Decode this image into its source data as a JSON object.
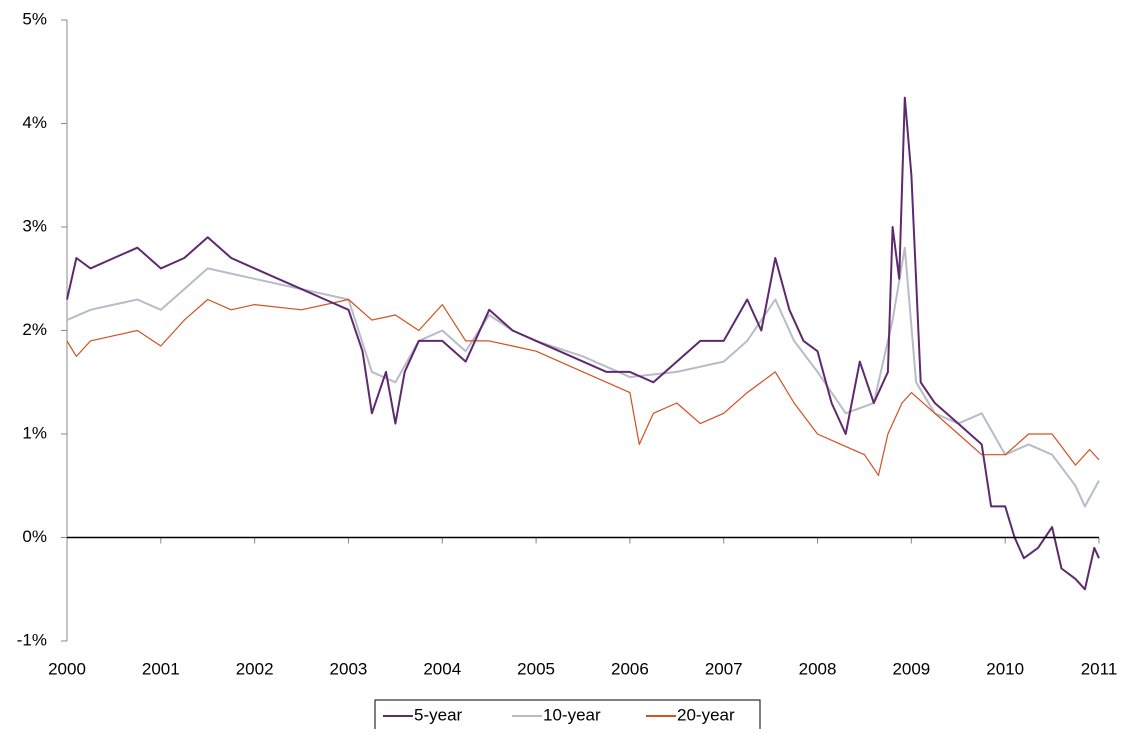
{
  "chart_data": {
    "type": "line",
    "xlim": [
      2000,
      2011
    ],
    "xticks": [
      2000,
      2001,
      2002,
      2003,
      2004,
      2005,
      2006,
      2007,
      2008,
      2009,
      2010,
      2011
    ],
    "ylim": [
      -1,
      5
    ],
    "yticks": [
      {
        "value": -1,
        "label": "-1%"
      },
      {
        "value": 0,
        "label": "0%"
      },
      {
        "value": 1,
        "label": "1%"
      },
      {
        "value": 2,
        "label": "2%"
      },
      {
        "value": 3,
        "label": "3%"
      },
      {
        "value": 4,
        "label": "4%"
      },
      {
        "value": 5,
        "label": "5%"
      }
    ],
    "legend": "bottom",
    "series": [
      {
        "name": "5-year",
        "color": "#5e2a6e",
        "x": [
          2000.0,
          2000.1,
          2000.25,
          2000.5,
          2000.75,
          2001.0,
          2001.25,
          2001.5,
          2001.75,
          2002.0,
          2002.25,
          2002.5,
          2002.75,
          2003.0,
          2003.15,
          2003.25,
          2003.4,
          2003.5,
          2003.6,
          2003.75,
          2004.0,
          2004.25,
          2004.5,
          2004.75,
          2005.0,
          2005.25,
          2005.5,
          2005.75,
          2006.0,
          2006.25,
          2006.5,
          2006.75,
          2007.0,
          2007.25,
          2007.4,
          2007.55,
          2007.7,
          2007.85,
          2008.0,
          2008.15,
          2008.3,
          2008.45,
          2008.6,
          2008.75,
          2008.8,
          2008.87,
          2008.93,
          2009.0,
          2009.1,
          2009.25,
          2009.5,
          2009.75,
          2009.85,
          2010.0,
          2010.1,
          2010.2,
          2010.35,
          2010.5,
          2010.6,
          2010.75,
          2010.85,
          2010.95,
          2011.0
        ],
        "values": [
          2.3,
          2.7,
          2.6,
          2.7,
          2.8,
          2.6,
          2.7,
          2.9,
          2.7,
          2.6,
          2.5,
          2.4,
          2.3,
          2.2,
          1.8,
          1.2,
          1.6,
          1.1,
          1.6,
          1.9,
          1.9,
          1.7,
          2.2,
          2.0,
          1.9,
          1.8,
          1.7,
          1.6,
          1.6,
          1.5,
          1.7,
          1.9,
          1.9,
          2.3,
          2.0,
          2.7,
          2.2,
          1.9,
          1.8,
          1.3,
          1.0,
          1.7,
          1.3,
          1.6,
          3.0,
          2.5,
          4.25,
          3.5,
          1.5,
          1.3,
          1.1,
          0.9,
          0.3,
          0.3,
          0.0,
          -0.2,
          -0.1,
          0.1,
          -0.3,
          -0.4,
          -0.5,
          -0.1,
          -0.2
        ]
      },
      {
        "name": "10-year",
        "color": "#b8bcc8",
        "x": [
          2000.0,
          2000.25,
          2000.5,
          2000.75,
          2001.0,
          2001.25,
          2001.5,
          2001.75,
          2002.0,
          2002.5,
          2003.0,
          2003.25,
          2003.5,
          2003.75,
          2004.0,
          2004.25,
          2004.5,
          2004.75,
          2005.0,
          2005.5,
          2006.0,
          2006.5,
          2007.0,
          2007.25,
          2007.55,
          2007.75,
          2008.0,
          2008.3,
          2008.6,
          2008.8,
          2008.93,
          2009.05,
          2009.25,
          2009.5,
          2009.75,
          2010.0,
          2010.25,
          2010.5,
          2010.75,
          2010.85,
          2011.0
        ],
        "values": [
          2.1,
          2.2,
          2.25,
          2.3,
          2.2,
          2.4,
          2.6,
          2.55,
          2.5,
          2.4,
          2.3,
          1.6,
          1.5,
          1.9,
          2.0,
          1.8,
          2.15,
          2.0,
          1.9,
          1.75,
          1.55,
          1.6,
          1.7,
          1.9,
          2.3,
          1.9,
          1.6,
          1.2,
          1.3,
          2.1,
          2.8,
          1.5,
          1.2,
          1.1,
          1.2,
          0.8,
          0.9,
          0.8,
          0.5,
          0.3,
          0.55
        ]
      },
      {
        "name": "20-year",
        "color": "#d4501e",
        "x": [
          2000.0,
          2000.1,
          2000.25,
          2000.5,
          2000.75,
          2001.0,
          2001.25,
          2001.5,
          2001.75,
          2002.0,
          2002.5,
          2003.0,
          2003.25,
          2003.5,
          2003.75,
          2004.0,
          2004.25,
          2004.5,
          2004.75,
          2005.0,
          2005.5,
          2006.0,
          2006.1,
          2006.25,
          2006.5,
          2006.75,
          2007.0,
          2007.25,
          2007.55,
          2007.75,
          2008.0,
          2008.25,
          2008.5,
          2008.65,
          2008.75,
          2008.9,
          2009.0,
          2009.25,
          2009.5,
          2009.75,
          2010.0,
          2010.25,
          2010.5,
          2010.75,
          2010.9,
          2011.0
        ],
        "values": [
          1.9,
          1.75,
          1.9,
          1.95,
          2.0,
          1.85,
          2.1,
          2.3,
          2.2,
          2.25,
          2.2,
          2.3,
          2.1,
          2.15,
          2.0,
          2.25,
          1.9,
          1.9,
          1.85,
          1.8,
          1.6,
          1.4,
          0.9,
          1.2,
          1.3,
          1.1,
          1.2,
          1.4,
          1.6,
          1.3,
          1.0,
          0.9,
          0.8,
          0.6,
          1.0,
          1.3,
          1.4,
          1.2,
          1.0,
          0.8,
          0.8,
          1.0,
          1.0,
          0.7,
          0.85,
          0.75
        ]
      }
    ]
  }
}
